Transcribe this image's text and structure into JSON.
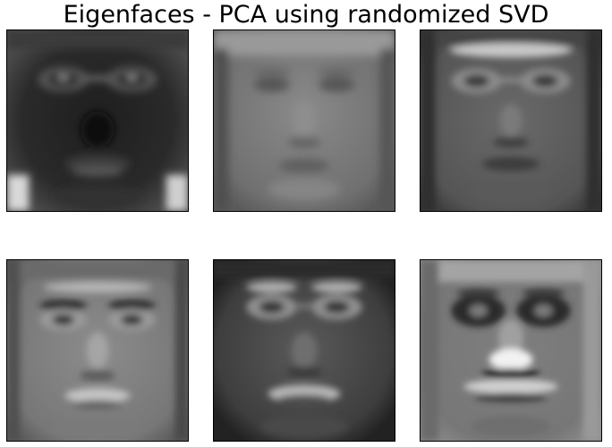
{
  "figure": {
    "title": "Eigenfaces - PCA using randomized SVD"
  },
  "panels": [
    {
      "image": "eigenface-1",
      "description_icon": "face-image"
    },
    {
      "image": "eigenface-2",
      "description_icon": "face-image"
    },
    {
      "image": "eigenface-3",
      "description_icon": "face-image"
    },
    {
      "image": "eigenface-4",
      "description_icon": "face-image"
    },
    {
      "image": "eigenface-5",
      "description_icon": "face-image"
    },
    {
      "image": "eigenface-6",
      "description_icon": "face-image"
    }
  ]
}
